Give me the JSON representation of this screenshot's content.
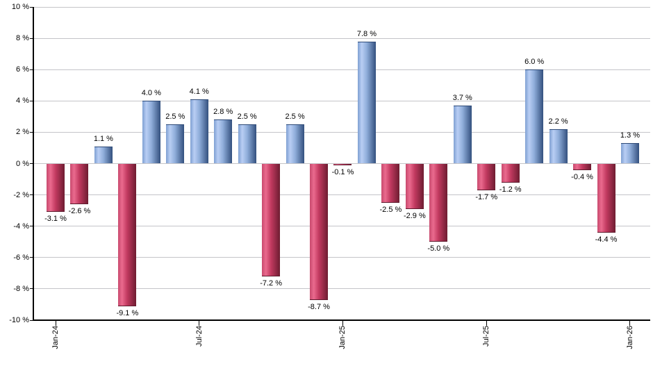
{
  "chart_data": {
    "type": "bar",
    "title": "",
    "xlabel": "",
    "ylabel": "",
    "ylim": [
      -10,
      10
    ],
    "grid": "horizontal",
    "legend": "none",
    "y_tick_values": [
      10,
      8,
      6,
      4,
      2,
      0,
      -2,
      -4,
      -6,
      -8,
      -10
    ],
    "y_tick_labels": [
      "10 %",
      "8 %",
      "6 %",
      "4 %",
      "2 %",
      "0 %",
      "-2 %",
      "-4 %",
      "-6 %",
      "-8 %",
      "-10 %"
    ],
    "bars": [
      {
        "value": -3.1,
        "label": "-3.1 %"
      },
      {
        "value": -2.6,
        "label": "-2.6 %"
      },
      {
        "value": 1.1,
        "label": "1.1 %"
      },
      {
        "value": -9.1,
        "label": "-9.1 %"
      },
      {
        "value": 4.0,
        "label": "4.0 %"
      },
      {
        "value": 2.5,
        "label": "2.5 %"
      },
      {
        "value": 4.1,
        "label": "4.1 %"
      },
      {
        "value": 2.8,
        "label": "2.8 %"
      },
      {
        "value": 2.5,
        "label": "2.5 %"
      },
      {
        "value": -7.2,
        "label": "-7.2 %"
      },
      {
        "value": 2.5,
        "label": "2.5 %"
      },
      {
        "value": -8.7,
        "label": "-8.7 %"
      },
      {
        "value": -0.1,
        "label": "-0.1 %"
      },
      {
        "value": 7.8,
        "label": "7.8 %"
      },
      {
        "value": -2.5,
        "label": "-2.5 %"
      },
      {
        "value": -2.9,
        "label": "-2.9 %"
      },
      {
        "value": -5.0,
        "label": "-5.0 %"
      },
      {
        "value": 3.7,
        "label": "3.7 %"
      },
      {
        "value": -1.7,
        "label": "-1.7 %"
      },
      {
        "value": -1.2,
        "label": "-1.2 %"
      },
      {
        "value": 6.0,
        "label": "6.0 %"
      },
      {
        "value": 2.2,
        "label": "2.2 %"
      },
      {
        "value": -0.4,
        "label": "-0.4 %"
      },
      {
        "value": -4.4,
        "label": "-4.4 %"
      },
      {
        "value": 1.3,
        "label": "1.3 %"
      }
    ],
    "x_ticks": [
      {
        "index": 0,
        "label": "Jan-24"
      },
      {
        "index": 6,
        "label": "Jul-24"
      },
      {
        "index": 12,
        "label": "Jan-25"
      },
      {
        "index": 18,
        "label": "Jul-25"
      },
      {
        "index": 24,
        "label": "Jan-26"
      }
    ],
    "colors": {
      "positive_gradient": [
        "#7fa0d2",
        "#b9cef4",
        "#8fadda",
        "#33507e"
      ],
      "negative_gradient": [
        "#c84a6e",
        "#ea6a8e",
        "#c23a60",
        "#6e1c31"
      ],
      "positive_cap": "#2e4a77",
      "negative_cap": "#5e1a2d",
      "gridline": "#c4c4c8",
      "axis": "#000000",
      "label_text": "#000000",
      "background": "#ffffff"
    }
  }
}
